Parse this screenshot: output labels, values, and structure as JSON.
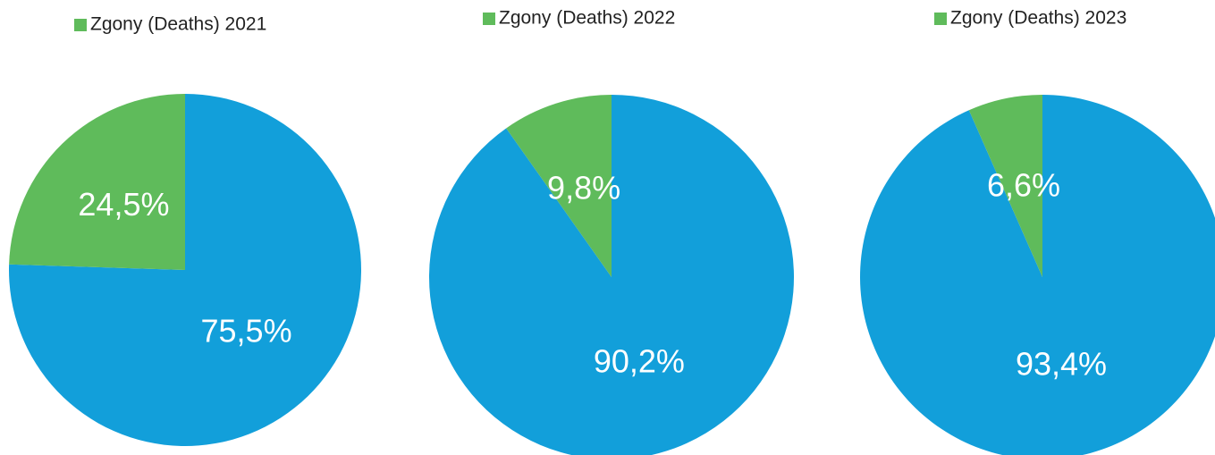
{
  "chart_data": [
    {
      "type": "pie",
      "categories": [
        null,
        "Zgony (Deaths) 2021"
      ],
      "values": [
        75.5,
        24.5
      ],
      "value_labels": [
        "75,5%",
        "24,5%"
      ],
      "colors": [
        "#129fda",
        "#5fbb5b"
      ]
    },
    {
      "type": "pie",
      "categories": [
        null,
        "Zgony (Deaths) 2022"
      ],
      "values": [
        90.2,
        9.8
      ],
      "value_labels": [
        "90,2%",
        "9,8%"
      ],
      "colors": [
        "#129fda",
        "#5fbb5b"
      ]
    },
    {
      "type": "pie",
      "categories": [
        null,
        "Zgony (Deaths) 2023"
      ],
      "values": [
        93.4,
        6.6
      ],
      "value_labels": [
        "93,4%",
        "6,6%"
      ],
      "colors": [
        "#129fda",
        "#5fbb5b"
      ]
    }
  ]
}
